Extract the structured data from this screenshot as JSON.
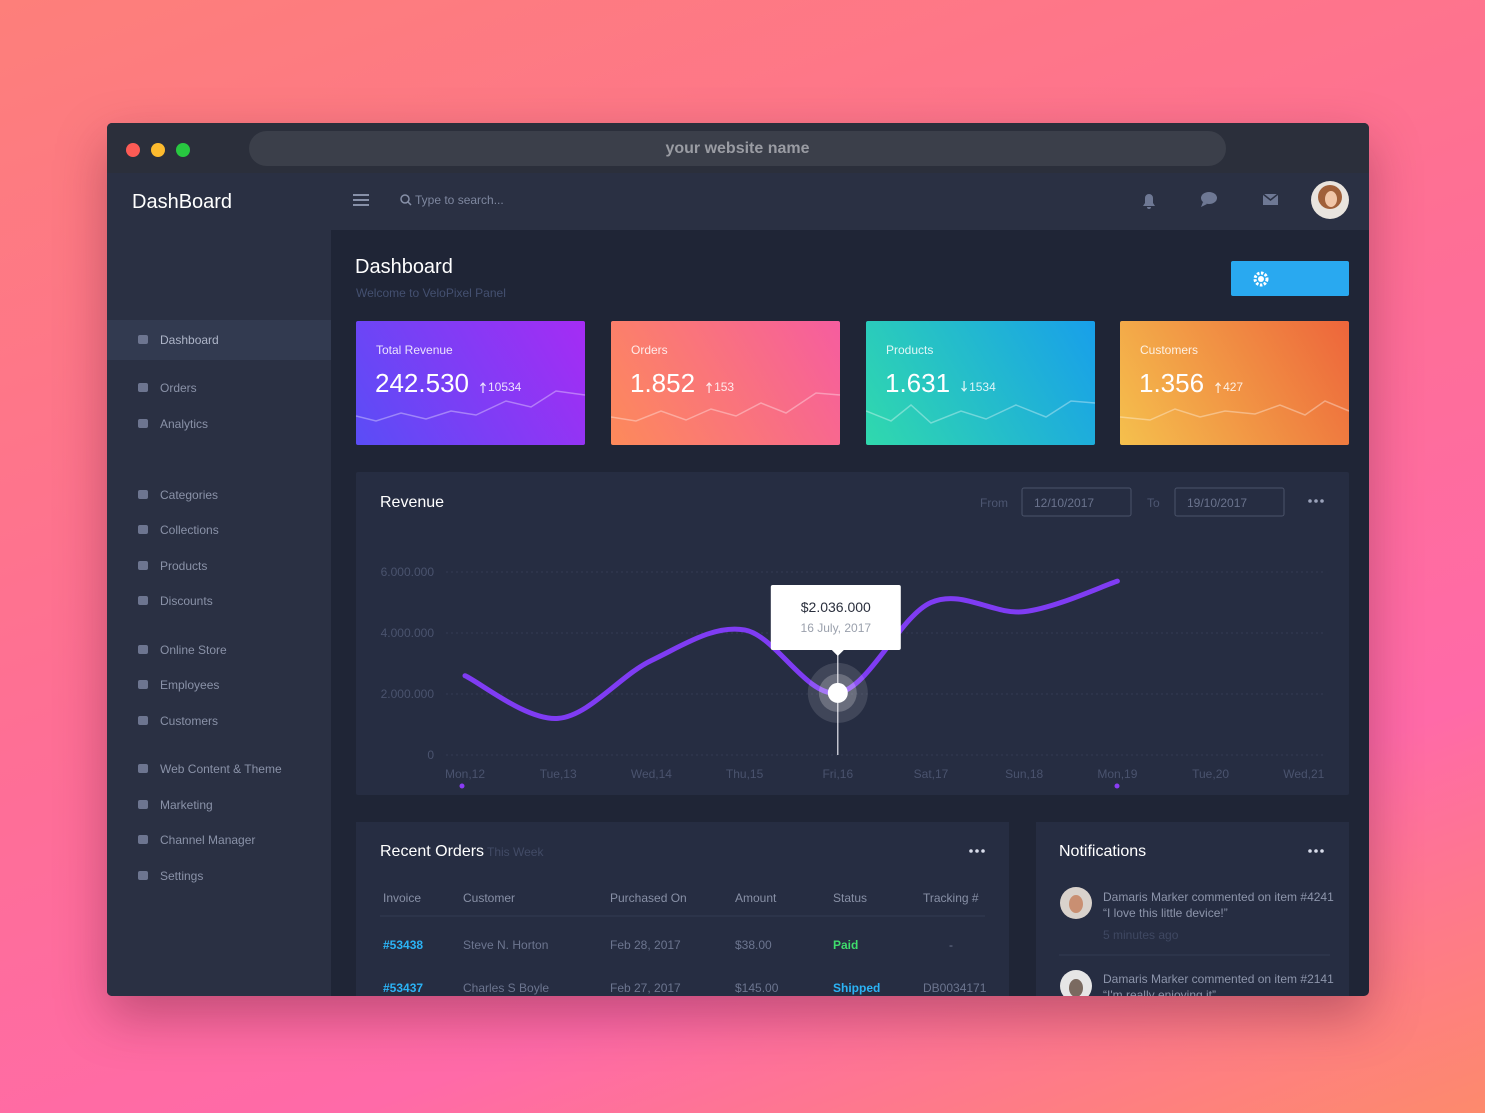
{
  "browser": {
    "url": "your website name"
  },
  "sidebar": {
    "brand": "DashBoard",
    "menu": [
      "Dashboard",
      "Orders",
      "Analytics",
      "Categories",
      "Collections",
      "Products",
      "Discounts",
      "Online Store",
      "Employees",
      "Customers",
      "Web Content & Theme",
      "Marketing",
      "Channel Manager",
      "Settings"
    ]
  },
  "header": {
    "search_placeholder": "Type to search..."
  },
  "page": {
    "title": "Dashboard",
    "subtitle": "Welcome to VeloPixel Panel",
    "settings_button": "Settings"
  },
  "stats": [
    {
      "label": "Total Revenue",
      "value": "242.530",
      "change": "10534",
      "direction": "up"
    },
    {
      "label": "Orders",
      "value": "1.852",
      "change": "153",
      "direction": "up"
    },
    {
      "label": "Products",
      "value": "1.631",
      "change": "1534",
      "direction": "down"
    },
    {
      "label": "Customers",
      "value": "1.356",
      "change": "427",
      "direction": "up"
    }
  ],
  "revenue_filter": {
    "from_label": "From",
    "from": "12/10/2017",
    "to_label": "To",
    "to": "19/10/2017"
  },
  "chart_data": {
    "type": "line",
    "title": "Revenue",
    "categories": [
      "Mon,12",
      "Tue,13",
      "Wed,14",
      "Thu,15",
      "Fri,16",
      "Sat,17",
      "Sun,18",
      "Mon,19",
      "Tue,20",
      "Wed,21"
    ],
    "values": [
      2600000,
      1200000,
      3100000,
      4100000,
      2036000,
      5000000,
      4700000,
      5700000,
      null,
      null
    ],
    "value_labels": [
      null,
      null,
      null,
      null,
      "$2.036.000",
      null,
      null,
      null,
      null,
      null
    ],
    "tooltip_date": "16 July, 2017",
    "color": "#7f3cf3",
    "ylim": [
      0,
      6000000
    ],
    "yticks": [
      {
        "value": 0,
        "label": "0"
      },
      {
        "value": 2000000,
        "label": "2.000.000"
      },
      {
        "value": 4000000,
        "label": "4.000.000"
      },
      {
        "value": 6000000,
        "label": "6.000.000"
      }
    ],
    "grid": true
  },
  "recent_orders": {
    "title": "Recent Orders",
    "subtitle": "This Week",
    "columns": [
      "Invoice",
      "Customer",
      "Purchased On",
      "Amount",
      "Status",
      "Tracking #"
    ],
    "rows": [
      {
        "invoice": "#53438",
        "customer": "Steve N. Horton",
        "date": "Feb 28, 2017",
        "amount": "$38.00",
        "status": "Paid",
        "status_color": "#3fdc6c",
        "tracking": "-"
      },
      {
        "invoice": "#53437",
        "customer": "Charles S Boyle",
        "date": "Feb 27, 2017",
        "amount": "$145.00",
        "status": "Shipped",
        "status_color": "#2bb3f5",
        "tracking": "DB0034171"
      }
    ]
  },
  "notifications": {
    "title": "Notifications",
    "items": [
      {
        "text": "Damaris Marker commented on item #4241",
        "quote": "“I love this little device!”",
        "time": "5 minutes ago"
      },
      {
        "text": "Damaris Marker commented on item #2141",
        "quote": "“I'm really enjoying it”"
      }
    ]
  }
}
